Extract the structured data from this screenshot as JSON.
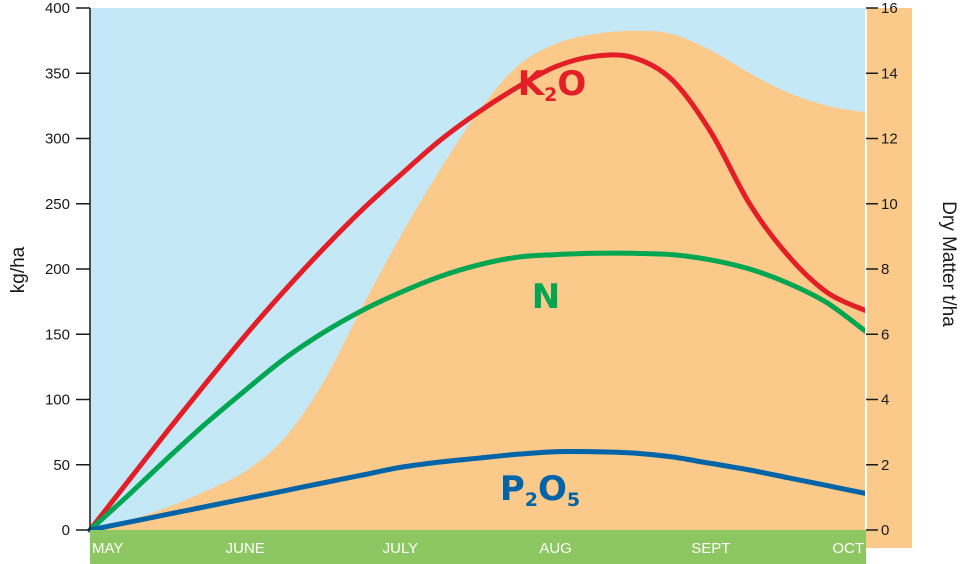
{
  "chart_data": {
    "type": "line",
    "categories": [
      "MAY",
      "JUNE",
      "JULY",
      "AUG",
      "SEPT",
      "OCT"
    ],
    "y_left": {
      "label": "kg/ha",
      "ticks": [
        0,
        50,
        100,
        150,
        200,
        250,
        300,
        350,
        400
      ],
      "lim": [
        0,
        400
      ]
    },
    "y_right": {
      "label": "Dry Matter t/ha",
      "ticks": [
        0,
        2,
        4,
        6,
        8,
        10,
        12,
        14,
        16
      ],
      "lim": [
        0,
        16
      ]
    },
    "series": [
      {
        "name": "K2O",
        "label_main": "K",
        "label_sub": "2",
        "label_tail": "O",
        "axis": "left",
        "color": "#e31e26",
        "x": [
          0,
          0.25,
          0.5,
          0.75,
          1.0,
          1.25,
          1.5,
          1.75,
          2.0,
          2.25,
          2.5,
          2.75,
          3.0,
          3.25,
          3.5,
          3.75,
          4.0,
          4.25,
          4.5,
          4.75,
          5.0
        ],
        "values": [
          0,
          38,
          76,
          113,
          149,
          183,
          215,
          245,
          272,
          298,
          320,
          339,
          355,
          363,
          362,
          345,
          305,
          250,
          210,
          182,
          168
        ]
      },
      {
        "name": "N",
        "label_main": "N",
        "label_sub": "",
        "label_tail": "",
        "axis": "left",
        "color": "#00a651",
        "x": [
          0,
          0.25,
          0.5,
          0.75,
          1.0,
          1.25,
          1.5,
          1.75,
          2.0,
          2.25,
          2.5,
          2.75,
          3.0,
          3.25,
          3.5,
          3.75,
          4.0,
          4.25,
          4.5,
          4.75,
          5.0
        ],
        "values": [
          0,
          27,
          55,
          82,
          107,
          131,
          151,
          168,
          182,
          194,
          203,
          209,
          211,
          212,
          212,
          211,
          207,
          200,
          189,
          174,
          152
        ]
      },
      {
        "name": "P2O5",
        "label_main": "P",
        "label_sub": "2",
        "label_tail": "O",
        "label_sub2": "5",
        "axis": "left",
        "color": "#0064a8",
        "x": [
          0,
          0.25,
          0.5,
          0.75,
          1.0,
          1.25,
          1.5,
          1.75,
          2.0,
          2.25,
          2.5,
          2.75,
          3.0,
          3.25,
          3.5,
          3.75,
          4.0,
          4.25,
          4.5,
          4.75,
          5.0
        ],
        "values": [
          0,
          6,
          12,
          18,
          24,
          30,
          36,
          42,
          48,
          52,
          55,
          58,
          60,
          60,
          59,
          56,
          51,
          46,
          40,
          34,
          28
        ]
      }
    ],
    "area": {
      "name": "Dry Matter",
      "axis": "right",
      "color": "#fbc98a",
      "x": [
        0,
        0.25,
        0.5,
        0.75,
        1.0,
        1.25,
        1.5,
        1.75,
        2.0,
        2.25,
        2.5,
        2.75,
        3.0,
        3.25,
        3.5,
        3.75,
        4.0,
        4.25,
        4.5,
        4.75,
        5.0
      ],
      "values": [
        0,
        0.3,
        0.7,
        1.2,
        1.8,
        2.8,
        4.5,
        6.8,
        9.0,
        11.0,
        12.8,
        14.2,
        14.9,
        15.2,
        15.3,
        15.2,
        14.7,
        14.0,
        13.4,
        13.0,
        12.8
      ]
    },
    "colors": {
      "sky": "#c5e8f7",
      "month_band": "#8cc762"
    },
    "grid": false
  }
}
